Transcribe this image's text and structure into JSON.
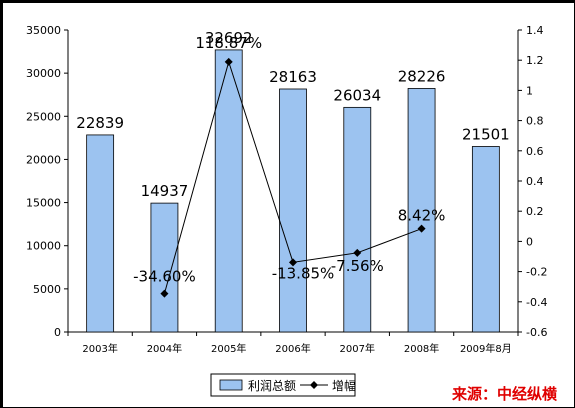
{
  "chart_data": {
    "type": "bar",
    "categories": [
      "2003年",
      "2004年",
      "2005年",
      "2006年",
      "2007年",
      "2008年",
      "2009年8月"
    ],
    "series": [
      {
        "name": "利润总额",
        "type": "bar",
        "axis": "left",
        "values": [
          22839,
          14937,
          32692,
          28163,
          26034,
          28226,
          21501
        ],
        "labels": [
          "22839",
          "14937",
          "32692",
          "28163",
          "26034",
          "28226",
          "21501"
        ],
        "color": "#9cc3f0"
      },
      {
        "name": "增幅",
        "type": "line",
        "axis": "right",
        "values": [
          null,
          -0.346,
          1.1887,
          -0.1385,
          -0.0756,
          0.0842,
          null
        ],
        "labels": [
          "",
          "-34.60%",
          "118.87%",
          "-13.85%",
          "-7.56%",
          "8.42%",
          ""
        ],
        "color": "#000000"
      }
    ],
    "y_left": {
      "min": 0,
      "max": 35000,
      "step": 5000,
      "ticks": [
        "0",
        "5000",
        "10000",
        "15000",
        "20000",
        "25000",
        "30000",
        "35000"
      ]
    },
    "y_right": {
      "min": -0.6,
      "max": 1.4,
      "step": 0.2,
      "ticks": [
        "-0.6",
        "-0.4",
        "-0.2",
        "0",
        "0.2",
        "0.4",
        "0.6",
        "0.8",
        "1",
        "1.2",
        "1.4"
      ]
    },
    "grid": false,
    "legend": "bottom"
  },
  "source_text": "来源：中经纵横"
}
